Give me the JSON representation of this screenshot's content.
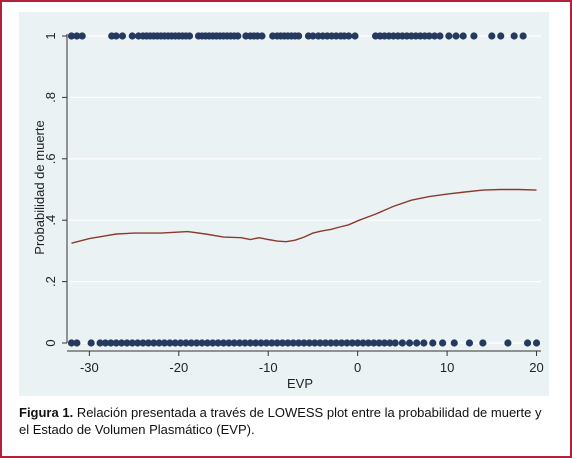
{
  "chart_data": {
    "type": "scatter",
    "xlabel": "EVP",
    "ylabel": "Probabilidad de muerte",
    "xlim": [
      -32.5,
      20.5
    ],
    "ylim": [
      0,
      1
    ],
    "xticks": [
      -30,
      -20,
      -10,
      0,
      10,
      20
    ],
    "xtick_labels": [
      "-30",
      "-20",
      "-10",
      "0",
      "10",
      "20"
    ],
    "yticks": [
      0,
      0.2,
      0.4,
      0.6,
      0.8,
      1
    ],
    "ytick_labels": [
      "0",
      ".2",
      ".4",
      ".6",
      ".8",
      "1"
    ],
    "grid": true,
    "colors": {
      "points": "#26395e",
      "lowess": "#8b3a2e",
      "background": "#eaf2f3",
      "grid": "#ffffff"
    },
    "series": [
      {
        "type": "scatter",
        "x": [
          -32,
          -31.4,
          -30.8,
          -27.5,
          -27,
          -26.3,
          -25.2,
          -24.5,
          -24,
          -23.6,
          -23.2,
          -22.8,
          -22.4,
          -22,
          -21.6,
          -21.2,
          -20.8,
          -20.4,
          -20,
          -19.6,
          -19.2,
          -18.8,
          -17.8,
          -17.4,
          -17,
          -16.6,
          -16.2,
          -15.8,
          -15.4,
          -15,
          -14.6,
          -14.2,
          -13.8,
          -13.4,
          -12.5,
          -12,
          -11.6,
          -11.2,
          -10.7,
          -9.5,
          -9,
          -8.6,
          -8.2,
          -7.8,
          -7.4,
          -7,
          -6.6,
          -5.5,
          -5,
          -4.4,
          -3.9,
          -3.4,
          -2.9,
          -2.4,
          -1.9,
          -1.5,
          -1,
          -0.3,
          2,
          2.5,
          3,
          3.5,
          4,
          4.5,
          5,
          5.5,
          6,
          6.5,
          7,
          7.5,
          8,
          8.6,
          9.2,
          10.2,
          11,
          11.8,
          13,
          15,
          16,
          17.5,
          18.5
        ],
        "y": [
          1,
          1,
          1,
          1,
          1,
          1,
          1,
          1,
          1,
          1,
          1,
          1,
          1,
          1,
          1,
          1,
          1,
          1,
          1,
          1,
          1,
          1,
          1,
          1,
          1,
          1,
          1,
          1,
          1,
          1,
          1,
          1,
          1,
          1,
          1,
          1,
          1,
          1,
          1,
          1,
          1,
          1,
          1,
          1,
          1,
          1,
          1,
          1,
          1,
          1,
          1,
          1,
          1,
          1,
          1,
          1,
          1,
          1,
          1,
          1,
          1,
          1,
          1,
          1,
          1,
          1,
          1,
          1,
          1,
          1,
          1,
          1,
          1,
          1,
          1,
          1,
          1,
          1,
          1,
          1,
          1
        ]
      },
      {
        "type": "scatter",
        "x": [
          -32,
          -31.4,
          -29.8,
          -28.8,
          -28.2,
          -27.6,
          -27,
          -26.4,
          -25.8,
          -25.2,
          -24.6,
          -24,
          -23.4,
          -22.8,
          -22.2,
          -21.6,
          -21,
          -20.4,
          -19.8,
          -19.2,
          -18.6,
          -18,
          -17.4,
          -16.8,
          -16.2,
          -15.6,
          -15,
          -14.4,
          -13.8,
          -13.2,
          -12.6,
          -12,
          -11.4,
          -10.8,
          -10.2,
          -9.6,
          -9,
          -8.4,
          -7.8,
          -7.2,
          -6.6,
          -6,
          -5.4,
          -4.8,
          -4.2,
          -3.6,
          -3,
          -2.4,
          -1.8,
          -1.2,
          -0.6,
          0,
          0.6,
          1.2,
          1.8,
          2.4,
          3,
          3.6,
          4.2,
          5,
          5.8,
          6.6,
          7.4,
          8.4,
          9.5,
          10.8,
          12.5,
          14,
          16.8,
          19,
          20
        ],
        "y": [
          0,
          0,
          0,
          0,
          0,
          0,
          0,
          0,
          0,
          0,
          0,
          0,
          0,
          0,
          0,
          0,
          0,
          0,
          0,
          0,
          0,
          0,
          0,
          0,
          0,
          0,
          0,
          0,
          0,
          0,
          0,
          0,
          0,
          0,
          0,
          0,
          0,
          0,
          0,
          0,
          0,
          0,
          0,
          0,
          0,
          0,
          0,
          0,
          0,
          0,
          0,
          0,
          0,
          0,
          0,
          0,
          0,
          0,
          0,
          0,
          0,
          0,
          0,
          0,
          0,
          0,
          0,
          0,
          0,
          0,
          0
        ]
      },
      {
        "type": "line",
        "x": [
          -32,
          -30,
          -28,
          -27,
          -25,
          -22,
          -19,
          -17,
          -15,
          -13,
          -12,
          -11,
          -10,
          -9,
          -8,
          -7,
          -6,
          -5,
          -4,
          -3,
          -2,
          -1,
          0,
          2,
          4,
          6,
          8,
          10,
          12,
          14,
          16,
          18,
          20
        ],
        "y": [
          0.325,
          0.34,
          0.35,
          0.355,
          0.358,
          0.358,
          0.363,
          0.355,
          0.345,
          0.343,
          0.337,
          0.343,
          0.337,
          0.332,
          0.33,
          0.335,
          0.345,
          0.358,
          0.365,
          0.37,
          0.378,
          0.385,
          0.398,
          0.42,
          0.445,
          0.465,
          0.477,
          0.485,
          0.492,
          0.498,
          0.5,
          0.5,
          0.498
        ]
      }
    ]
  },
  "caption": {
    "label": "Figura 1.",
    "text": "Relación presentada a través de LOWESS plot entre la probabilidad de muerte y el Estado de Volumen Plasmático (EVP)."
  }
}
